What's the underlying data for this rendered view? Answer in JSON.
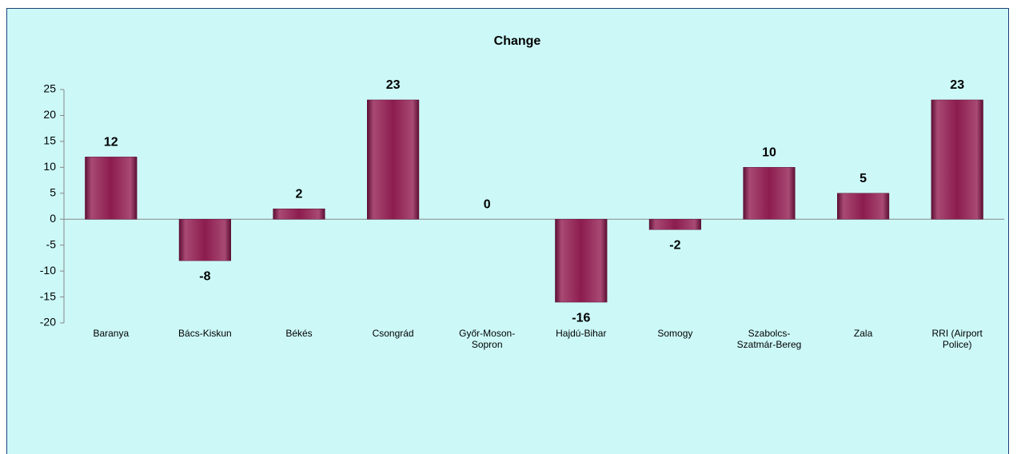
{
  "chart_data": {
    "type": "bar",
    "title": "Change",
    "categories": [
      "Baranya",
      "Bács-Kiskun",
      "Békés",
      "Csongrád",
      "Győr-Moson-Sopron",
      "Hajdú-Bihar",
      "Somogy",
      "Szabolcs-Szatmár-Bereg",
      "Zala",
      "RRI (Airport Police)"
    ],
    "values": [
      12,
      -8,
      2,
      23,
      0,
      -16,
      -2,
      10,
      5,
      23
    ],
    "color": "#8c1c4e",
    "ylim": [
      -20,
      25
    ],
    "yticks": [
      -20,
      -15,
      -10,
      -5,
      0,
      5,
      10,
      15,
      20,
      25
    ],
    "grid": false
  }
}
